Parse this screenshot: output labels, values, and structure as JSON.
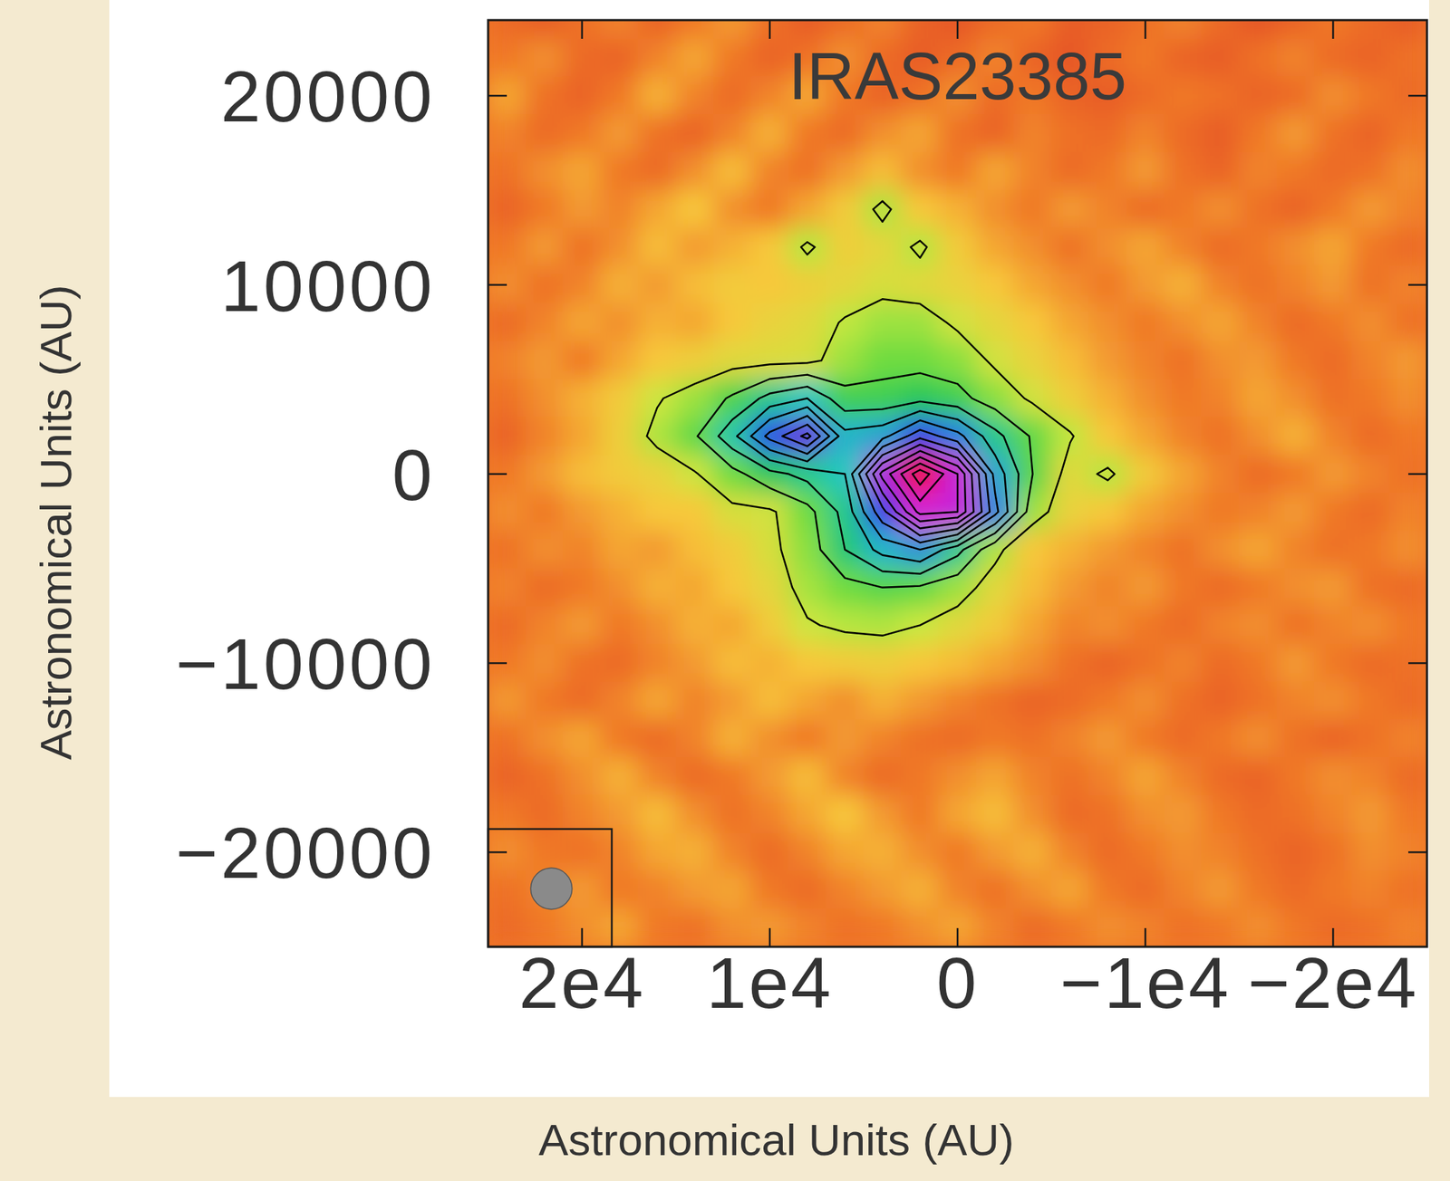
{
  "chart_data": {
    "type": "heatmap",
    "title": "IRAS23385",
    "xlabel": "Astronomical Units (AU)",
    "ylabel": "Astronomical Units (AU)",
    "xlim": [
      25000,
      -25000
    ],
    "ylim": [
      -25000,
      24000
    ],
    "xticks": [
      {
        "value": 20000,
        "label": "2e4"
      },
      {
        "value": 10000,
        "label": "1e4"
      },
      0,
      {
        "value": -10000,
        "label": "−1e4"
      },
      {
        "value": -20000,
        "label": "−2e4"
      }
    ],
    "yticks": [
      {
        "value": -20000,
        "label": "−20000"
      },
      {
        "value": -10000,
        "label": "−10000"
      },
      0,
      10000,
      20000
    ],
    "x": [
      24000,
      22000,
      20000,
      18000,
      16000,
      14000,
      12000,
      10000,
      8000,
      6000,
      4000,
      2000,
      0,
      -2000,
      -4000,
      -6000,
      -8000,
      -10000,
      -12000,
      -14000,
      -16000,
      -18000,
      -20000,
      -22000,
      -24000
    ],
    "y": [
      24000,
      22000,
      20000,
      18000,
      16000,
      14000,
      12000,
      10000,
      8000,
      6000,
      4000,
      2000,
      0,
      -2000,
      -4000,
      -6000,
      -8000,
      -10000,
      -12000,
      -14000,
      -16000,
      -18000,
      -20000,
      -22000,
      -24000
    ],
    "z": [
      [
        0.6,
        0.4,
        0.7,
        0.9,
        0.5,
        0.8,
        1.1,
        0.7,
        0.4,
        0.6,
        0.9,
        0.5,
        0.3,
        0.6,
        0.8,
        0.4,
        0.5,
        0.7,
        0.9,
        0.6,
        0.3,
        0.5,
        0.8,
        0.6,
        0.4
      ],
      [
        0.8,
        1.0,
        0.6,
        0.5,
        0.9,
        1.2,
        0.8,
        0.5,
        0.7,
        1.0,
        0.6,
        0.4,
        0.6,
        0.9,
        0.5,
        0.3,
        0.6,
        0.8,
        0.5,
        0.4,
        0.7,
        0.9,
        0.6,
        0.5,
        0.7
      ],
      [
        1.2,
        0.7,
        0.5,
        0.8,
        1.3,
        0.9,
        0.6,
        0.9,
        1.2,
        0.8,
        0.5,
        0.7,
        1.0,
        0.6,
        0.8,
        0.5,
        0.4,
        0.6,
        0.8,
        0.7,
        0.5,
        0.6,
        1.0,
        0.8,
        0.6
      ],
      [
        0.9,
        0.6,
        0.8,
        1.1,
        0.7,
        0.5,
        0.9,
        1.3,
        0.8,
        0.6,
        1.0,
        1.2,
        0.7,
        0.5,
        0.9,
        0.7,
        0.6,
        0.9,
        0.6,
        0.4,
        0.8,
        1.1,
        0.7,
        0.5,
        0.8
      ],
      [
        0.7,
        1.0,
        1.2,
        0.8,
        0.6,
        1.0,
        1.4,
        0.9,
        0.7,
        1.1,
        1.4,
        1.0,
        0.8,
        1.2,
        0.9,
        0.6,
        0.8,
        1.1,
        0.7,
        0.5,
        0.9,
        0.8,
        0.6,
        0.7,
        1.0
      ],
      [
        0.5,
        0.8,
        1.1,
        0.9,
        1.2,
        1.5,
        1.0,
        0.8,
        1.2,
        1.6,
        2.8,
        1.5,
        1.3,
        1.0,
        0.8,
        1.1,
        0.9,
        0.6,
        0.8,
        1.0,
        0.7,
        0.5,
        0.8,
        1.1,
        0.9
      ],
      [
        0.8,
        1.1,
        0.7,
        1.0,
        1.4,
        1.1,
        1.3,
        1.5,
        2.7,
        1.7,
        1.9,
        2.7,
        1.6,
        1.2,
        1.0,
        0.7,
        1.0,
        1.2,
        0.9,
        0.6,
        0.8,
        1.0,
        1.2,
        0.8,
        0.6
      ],
      [
        1.0,
        0.7,
        0.9,
        1.3,
        1.1,
        1.4,
        1.6,
        1.5,
        1.7,
        1.9,
        2.2,
        2.0,
        1.8,
        1.5,
        1.2,
        1.0,
        0.8,
        1.1,
        1.3,
        0.9,
        0.7,
        0.9,
        1.1,
        0.7,
        0.9
      ],
      [
        0.6,
        0.9,
        1.2,
        1.0,
        1.3,
        1.2,
        1.5,
        1.8,
        2.0,
        2.6,
        3.0,
        3.0,
        2.3,
        1.9,
        1.5,
        1.2,
        1.0,
        0.8,
        1.0,
        1.2,
        0.9,
        0.6,
        0.8,
        1.0,
        0.7
      ],
      [
        0.9,
        1.1,
        0.8,
        1.2,
        1.5,
        1.7,
        2.0,
        2.1,
        2.2,
        3.0,
        3.5,
        3.5,
        3.2,
        2.3,
        1.8,
        1.4,
        1.1,
        0.9,
        0.7,
        1.0,
        1.1,
        0.8,
        0.6,
        0.9,
        1.1
      ],
      [
        0.7,
        1.0,
        1.3,
        1.6,
        2.4,
        3.0,
        4.2,
        6.0,
        7.0,
        4.5,
        4.5,
        5.0,
        4.5,
        3.2,
        2.3,
        1.7,
        1.3,
        1.0,
        0.8,
        0.9,
        1.2,
        1.0,
        0.7,
        0.8,
        1.0
      ],
      [
        0.5,
        0.9,
        1.2,
        1.7,
        2.8,
        3.8,
        6.5,
        10.5,
        13.5,
        7.5,
        8.0,
        11.0,
        9.0,
        6.0,
        3.8,
        2.6,
        1.5,
        1.2,
        0.9,
        0.7,
        1.0,
        1.3,
        0.9,
        0.6,
        0.8
      ],
      [
        0.8,
        1.1,
        1.4,
        1.6,
        1.8,
        2.4,
        3.5,
        5.0,
        6.0,
        7.0,
        15.0,
        20.0,
        16.0,
        8.0,
        4.0,
        2.0,
        2.7,
        1.6,
        1.2,
        0.9,
        0.6,
        0.8,
        1.1,
        0.9,
        0.7
      ],
      [
        1.0,
        0.8,
        1.1,
        1.3,
        1.5,
        1.5,
        2.2,
        2.3,
        3.5,
        6.0,
        11.0,
        16.5,
        16.0,
        9.0,
        3.0,
        1.8,
        1.5,
        1.2,
        1.0,
        0.8,
        0.9,
        1.1,
        0.8,
        0.6,
        0.9
      ],
      [
        0.7,
        1.0,
        0.9,
        1.2,
        1.1,
        1.4,
        1.6,
        2.2,
        3.2,
        5.5,
        7.5,
        8.5,
        6.0,
        2.8,
        1.5,
        1.3,
        1.1,
        0.9,
        0.7,
        1.0,
        1.2,
        0.9,
        0.7,
        0.8,
        1.0
      ],
      [
        0.9,
        0.6,
        0.8,
        1.0,
        1.3,
        1.2,
        1.5,
        1.9,
        2.9,
        3.5,
        4.0,
        3.8,
        3.0,
        2.0,
        1.4,
        1.1,
        0.9,
        1.1,
        0.8,
        0.6,
        0.8,
        1.0,
        1.1,
        0.7,
        0.6
      ],
      [
        0.6,
        0.9,
        1.1,
        0.8,
        1.0,
        1.3,
        1.2,
        1.6,
        2.4,
        2.7,
        2.8,
        2.5,
        2.0,
        1.6,
        1.2,
        0.9,
        1.0,
        0.8,
        0.6,
        0.9,
        1.0,
        0.7,
        0.9,
        1.0,
        0.8
      ],
      [
        0.8,
        1.0,
        0.7,
        0.6,
        0.9,
        1.1,
        1.4,
        1.3,
        1.5,
        1.6,
        1.7,
        1.5,
        1.4,
        1.2,
        1.0,
        0.7,
        0.5,
        0.7,
        0.9,
        0.6,
        0.8,
        1.1,
        0.8,
        0.6,
        0.7
      ],
      [
        1.1,
        0.8,
        0.6,
        0.9,
        1.2,
        0.9,
        1.1,
        1.4,
        1.2,
        1.0,
        1.3,
        1.1,
        0.9,
        0.7,
        0.5,
        0.6,
        0.8,
        1.0,
        0.7,
        0.5,
        0.7,
        0.9,
        1.0,
        0.8,
        0.6
      ],
      [
        0.7,
        1.0,
        1.2,
        0.8,
        0.6,
        0.9,
        1.3,
        1.0,
        0.8,
        1.1,
        0.9,
        0.7,
        0.6,
        0.8,
        0.7,
        0.9,
        1.1,
        0.8,
        0.6,
        0.8,
        1.0,
        0.7,
        0.5,
        0.7,
        0.9
      ],
      [
        0.5,
        0.7,
        1.0,
        1.3,
        0.9,
        0.6,
        0.8,
        1.1,
        1.4,
        0.9,
        0.6,
        0.8,
        1.0,
        1.2,
        0.9,
        0.7,
        0.9,
        1.2,
        0.9,
        0.6,
        0.5,
        0.8,
        1.0,
        0.9,
        0.6
      ],
      [
        0.8,
        0.6,
        0.9,
        1.1,
        1.4,
        1.0,
        0.7,
        0.9,
        1.2,
        1.5,
        1.1,
        0.8,
        1.2,
        1.4,
        1.0,
        0.6,
        0.7,
        1.0,
        1.1,
        0.8,
        0.6,
        0.7,
        0.9,
        1.1,
        0.8
      ],
      [
        1.0,
        0.8,
        0.7,
        0.9,
        1.2,
        1.3,
        0.9,
        0.6,
        0.9,
        1.2,
        1.3,
        1.0,
        0.8,
        1.1,
        1.3,
        0.9,
        0.6,
        0.8,
        1.0,
        0.9,
        0.7,
        0.5,
        0.7,
        1.0,
        0.9
      ],
      [
        0.7,
        0.9,
        1.1,
        0.8,
        0.9,
        1.1,
        1.2,
        0.8,
        0.6,
        0.9,
        1.1,
        1.3,
        0.9,
        0.7,
        1.0,
        1.2,
        0.8,
        0.6,
        0.9,
        1.1,
        0.8,
        0.6,
        0.8,
        0.9,
        0.7
      ],
      [
        0.6,
        0.8,
        1.0,
        1.2,
        0.8,
        0.7,
        1.0,
        1.1,
        0.9,
        0.7,
        0.8,
        1.0,
        1.2,
        0.9,
        0.6,
        0.8,
        1.0,
        0.9,
        0.7,
        0.8,
        1.0,
        0.8,
        0.6,
        0.7,
        0.9
      ]
    ],
    "contour_levels": [
      2.5,
      4,
      5.5,
      7,
      8.5,
      10,
      11.5,
      13,
      14.5,
      16,
      17.5,
      19
    ],
    "beam": 2200
  }
}
